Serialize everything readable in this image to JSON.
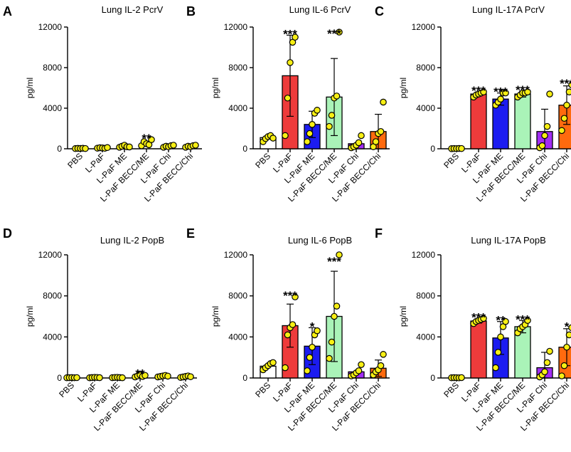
{
  "figure": {
    "categories": [
      "PBS",
      "L-PaF",
      "L-PaF ME",
      "L-PaF BECC/ME",
      "L-PaF Chi",
      "L-PaF BECC/Chi"
    ]
  },
  "colors": {
    "bar_fills": [
      "#ffffff",
      "#ee3b3b",
      "#1c1cf0",
      "#aaf3b8",
      "#a22cf5",
      "#ff6a0e"
    ],
    "point_fill": "#f7ef14",
    "point_stroke": "#000000"
  },
  "chart_data": [
    {
      "type": "bar",
      "panel": "A",
      "title": "Lung IL-2 PcrV",
      "ylabel": "pg/ml",
      "ylim": [
        0,
        12000
      ],
      "yticks": [
        "0",
        "4000",
        "8000",
        "12000"
      ],
      "categories": [
        "PBS",
        "L-PaF",
        "L-PaF ME",
        "L-PaF BECC/ME",
        "L-PaF Chi",
        "L-PaF BECC/Chi"
      ],
      "values": [
        0,
        0,
        0,
        0,
        0,
        0
      ],
      "errors": [
        0,
        0,
        0,
        0,
        0,
        0
      ],
      "points": [
        [
          20,
          40,
          30,
          50,
          25
        ],
        [
          60,
          100,
          80,
          50,
          120
        ],
        [
          150,
          250,
          350,
          200,
          180
        ],
        [
          300,
          700,
          500,
          400,
          900
        ],
        [
          150,
          250,
          200,
          300,
          350
        ],
        [
          150,
          250,
          200,
          300,
          350
        ]
      ],
      "significance": [
        "",
        "",
        "",
        "**",
        "",
        ""
      ]
    },
    {
      "type": "bar",
      "panel": "B",
      "title": "Lung IL-6 PcrV",
      "ylabel": "pg/ml",
      "ylim": [
        0,
        12000
      ],
      "yticks": [
        "0",
        "4000",
        "8000",
        "12000"
      ],
      "categories": [
        "PBS",
        "L-PaF",
        "L-PaF ME",
        "L-PaF BECC/ME",
        "L-PaF Chi",
        "L-PaF BECC/Chi"
      ],
      "values": [
        1100,
        7200,
        2400,
        5100,
        500,
        1700
      ],
      "errors": [
        0,
        4000,
        1300,
        3800,
        0,
        1700
      ],
      "points": [
        [
          700,
          1000,
          1200,
          1300,
          1050
        ],
        [
          1300,
          5000,
          8500,
          10500,
          11000
        ],
        [
          700,
          1500,
          2400,
          3500,
          3800
        ],
        [
          2200,
          3300,
          5000,
          5200,
          11500
        ],
        [
          100,
          200,
          350,
          600,
          1300
        ],
        [
          200,
          700,
          1500,
          1700,
          4600
        ]
      ],
      "significance": [
        "",
        "***",
        "",
        "***",
        "",
        ""
      ]
    },
    {
      "type": "bar",
      "panel": "C",
      "title": "Lung IL-17A PcrV",
      "ylabel": "pg/ml",
      "ylim": [
        0,
        12000
      ],
      "yticks": [
        "0",
        "4000",
        "8000",
        "12000"
      ],
      "categories": [
        "PBS",
        "L-PaF",
        "L-PaF ME",
        "L-PaF BECC/ME",
        "L-PaF Chi",
        "L-PaF BECC/Chi"
      ],
      "values": [
        0,
        5400,
        4900,
        5400,
        1700,
        4300
      ],
      "errors": [
        0,
        200,
        600,
        300,
        2200,
        1900
      ],
      "points": [
        [
          10,
          20,
          15,
          30,
          25
        ],
        [
          5100,
          5300,
          5400,
          5500,
          5600
        ],
        [
          4300,
          4600,
          4900,
          5500,
          5500
        ],
        [
          5100,
          5300,
          5500,
          5500,
          5600
        ],
        [
          100,
          300,
          1300,
          2200,
          5400
        ],
        [
          1800,
          3000,
          4300,
          5600,
          6300
        ]
      ],
      "significance": [
        "",
        "***",
        "***",
        "***",
        "",
        "***"
      ]
    },
    {
      "type": "bar",
      "panel": "D",
      "title": "Lung IL-2 PopB",
      "ylabel": "pg/ml",
      "ylim": [
        0,
        12000
      ],
      "yticks": [
        "0",
        "4000",
        "8000",
        "12000"
      ],
      "categories": [
        "PBS",
        "L-PaF",
        "L-PaF ME",
        "L-PaF BECC/ME",
        "L-PaF Chi",
        "L-PaF BECC/Chi"
      ],
      "values": [
        0,
        0,
        0,
        0,
        0,
        0
      ],
      "errors": [
        0,
        0,
        0,
        0,
        0,
        0
      ],
      "points": [
        [
          20,
          30,
          40,
          25,
          35
        ],
        [
          20,
          40,
          60,
          50,
          30
        ],
        [
          30,
          50,
          60,
          40,
          20
        ],
        [
          100,
          200,
          300,
          150,
          250
        ],
        [
          100,
          150,
          200,
          250,
          180
        ],
        [
          50,
          100,
          150,
          200,
          120
        ]
      ],
      "significance": [
        "",
        "",
        "",
        "**",
        "",
        ""
      ]
    },
    {
      "type": "bar",
      "panel": "E",
      "title": "Lung IL-6 PopB",
      "ylabel": "pg/ml",
      "ylim": [
        0,
        12000
      ],
      "yticks": [
        "0",
        "4000",
        "8000",
        "12000"
      ],
      "categories": [
        "PBS",
        "L-PaF",
        "L-PaF ME",
        "L-PaF BECC/ME",
        "L-PaF Chi",
        "L-PaF BECC/Chi"
      ],
      "values": [
        1150,
        5100,
        3100,
        6000,
        600,
        950
      ],
      "errors": [
        0,
        2100,
        1800,
        4400,
        0,
        800
      ],
      "points": [
        [
          800,
          1000,
          1200,
          1400,
          1500
        ],
        [
          1000,
          4200,
          4900,
          5200,
          7900
        ],
        [
          700,
          2000,
          3000,
          4200,
          4600
        ],
        [
          1900,
          3500,
          6000,
          7000,
          12000
        ],
        [
          200,
          300,
          500,
          700,
          1300
        ],
        [
          300,
          600,
          800,
          1200,
          2300
        ]
      ],
      "significance": [
        "",
        "***",
        "*",
        "***",
        "",
        ""
      ]
    },
    {
      "type": "bar",
      "panel": "F",
      "title": "Lung IL-17A PopB",
      "ylabel": "pg/ml",
      "ylim": [
        0,
        12000
      ],
      "yticks": [
        "0",
        "4000",
        "8000",
        "12000"
      ],
      "categories": [
        "PBS",
        "L-PaF",
        "L-PaF ME",
        "L-PaF BECC/ME",
        "L-PaF Chi",
        "L-PaF BECC/Chi"
      ],
      "values": [
        0,
        5550,
        3900,
        5000,
        1000,
        3000
      ],
      "errors": [
        0,
        200,
        1600,
        600,
        1500,
        1800
      ],
      "points": [
        [
          20,
          30,
          25,
          15,
          35
        ],
        [
          5300,
          5500,
          5600,
          5700,
          5800
        ],
        [
          1000,
          2500,
          4000,
          5000,
          5500
        ],
        [
          4400,
          4800,
          5000,
          5200,
          5600
        ],
        [
          100,
          300,
          600,
          1500,
          2600
        ],
        [
          200,
          1200,
          3000,
          4200,
          4900
        ]
      ],
      "significance": [
        "",
        "***",
        "**",
        "***",
        "",
        "*"
      ]
    }
  ]
}
